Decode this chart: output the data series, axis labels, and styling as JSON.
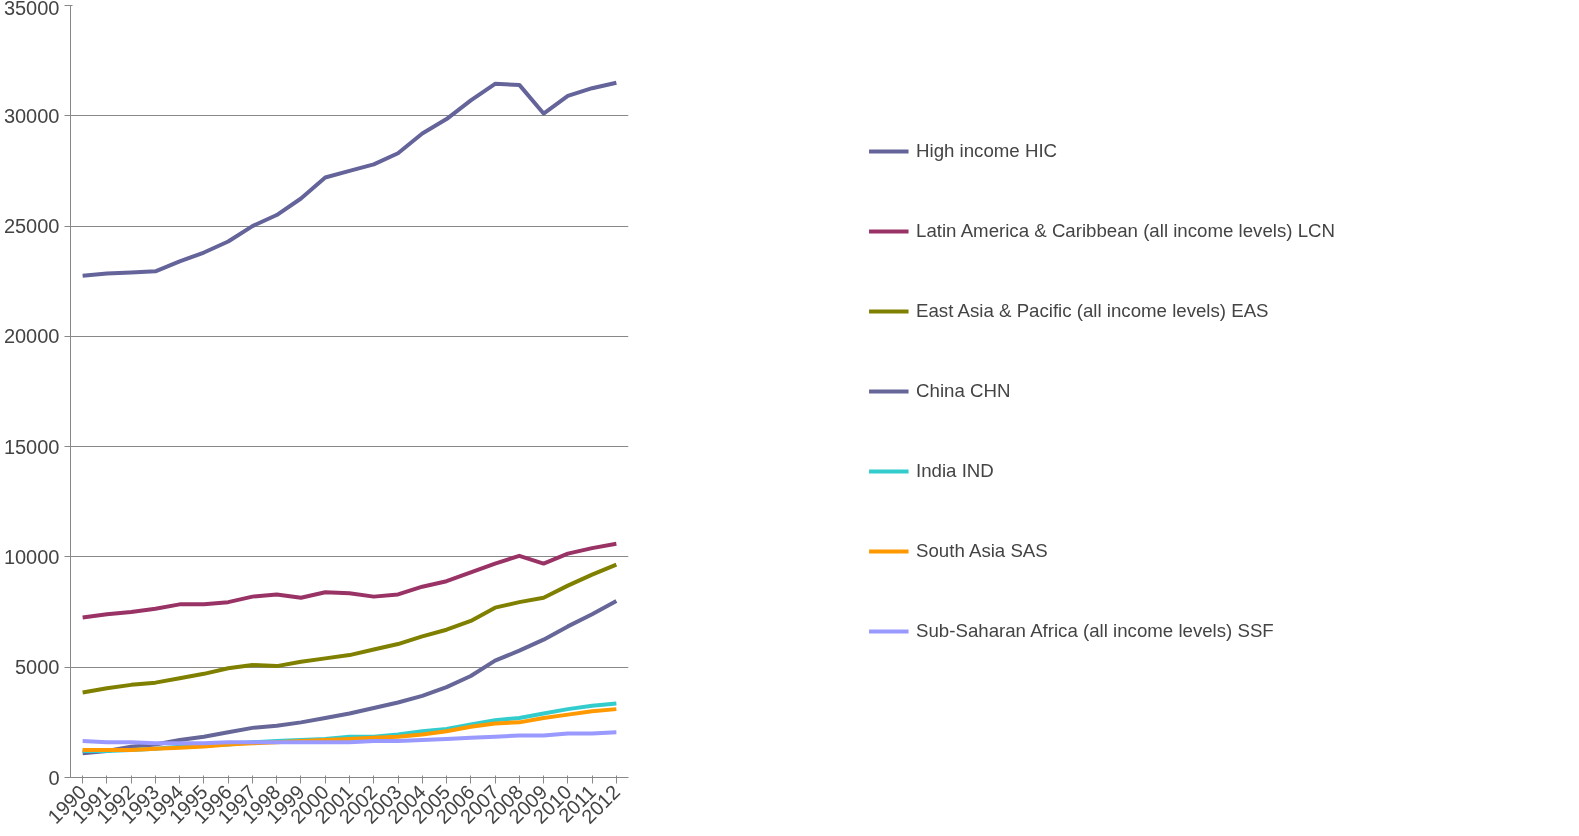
{
  "chart_data": {
    "type": "line",
    "categories": [
      "1990",
      "1991",
      "1992",
      "1993",
      "1994",
      "1995",
      "1996",
      "1997",
      "1998",
      "1999",
      "2000",
      "2001",
      "2002",
      "2003",
      "2004",
      "2005",
      "2006",
      "2007",
      "2008",
      "2009",
      "2010",
      "2011",
      "2012"
    ],
    "ylim": [
      0,
      35000
    ],
    "yticks": [
      0,
      5000,
      10000,
      15000,
      20000,
      25000,
      30000,
      35000
    ],
    "grid": "y",
    "legend": "right",
    "marker": "none",
    "line_style": "solid",
    "series": [
      {
        "name": "High income HIC",
        "color": "#65649a",
        "values": [
          22750,
          22850,
          22900,
          22950,
          23400,
          23800,
          24300,
          25000,
          25500,
          26250,
          27200,
          27500,
          27800,
          28300,
          29200,
          29850,
          30700,
          31450,
          31400,
          30100,
          30900,
          31250,
          31500
        ]
      },
      {
        "name": "Latin America & Caribbean (all income levels) LCN",
        "color": "#993366",
        "values": [
          7250,
          7400,
          7500,
          7650,
          7850,
          7850,
          7950,
          8200,
          8300,
          8150,
          8400,
          8350,
          8200,
          8300,
          8650,
          8900,
          9300,
          9700,
          10050,
          9700,
          10150,
          10400,
          10600
        ]
      },
      {
        "name": "East Asia & Pacific (all income levels) EAS",
        "color": "#808000",
        "values": [
          3850,
          4050,
          4200,
          4300,
          4500,
          4700,
          4950,
          5100,
          5050,
          5250,
          5400,
          5550,
          5800,
          6050,
          6400,
          6700,
          7100,
          7700,
          7950,
          8150,
          8700,
          9200,
          9650
        ]
      },
      {
        "name": "China CHN",
        "color": "#666699",
        "values": [
          1100,
          1200,
          1400,
          1500,
          1700,
          1850,
          2050,
          2250,
          2350,
          2500,
          2700,
          2900,
          3150,
          3400,
          3700,
          4100,
          4600,
          5300,
          5750,
          6250,
          6850,
          7400,
          8000
        ]
      },
      {
        "name": "India IND",
        "color": "#33cccc",
        "values": [
          1200,
          1200,
          1250,
          1300,
          1400,
          1450,
          1500,
          1600,
          1650,
          1700,
          1750,
          1850,
          1850,
          1950,
          2100,
          2200,
          2400,
          2600,
          2700,
          2900,
          3100,
          3250,
          3350
        ]
      },
      {
        "name": "South Asia SAS",
        "color": "#ff9900",
        "values": [
          1250,
          1250,
          1250,
          1300,
          1350,
          1400,
          1500,
          1550,
          1600,
          1650,
          1700,
          1750,
          1800,
          1850,
          1950,
          2100,
          2300,
          2450,
          2500,
          2700,
          2850,
          3000,
          3100
        ]
      },
      {
        "name": "Sub-Saharan Africa (all income levels) SSF",
        "color": "#9999ff",
        "values": [
          1650,
          1600,
          1600,
          1550,
          1550,
          1550,
          1600,
          1600,
          1600,
          1600,
          1600,
          1600,
          1650,
          1650,
          1700,
          1750,
          1800,
          1850,
          1900,
          1900,
          2000,
          2000,
          2050
        ]
      }
    ]
  }
}
